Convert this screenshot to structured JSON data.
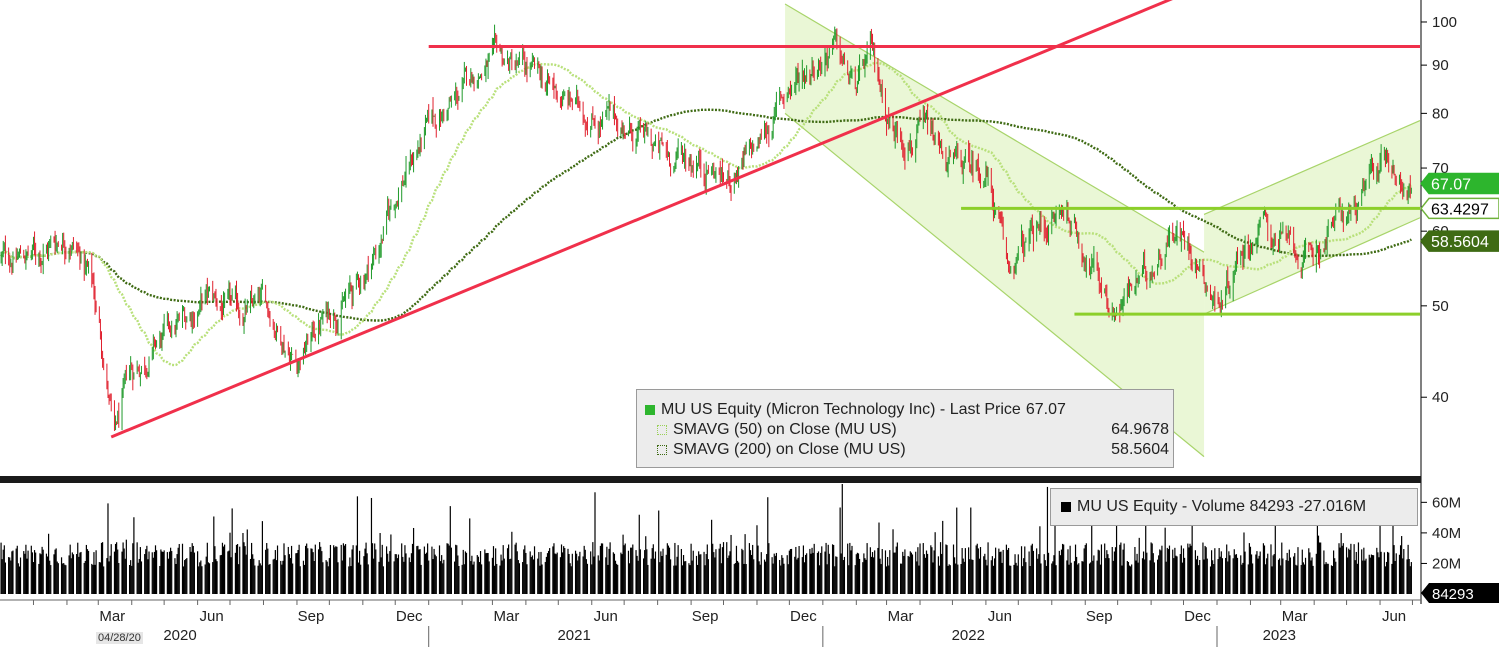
{
  "chart_data": [
    {
      "type": "candlestick",
      "series": [
        {
          "name": "MU US Equity (Micron Technology Inc) - Last Price",
          "last": 67.07,
          "color": "#2db52d"
        },
        {
          "name": "SMAVG (50)  on Close (MU US)",
          "last": 64.9678,
          "color": "#b8e07a"
        },
        {
          "name": "SMAVG (200)  on Close (MU US)",
          "last": 58.5604,
          "color": "#3f6b14"
        }
      ],
      "price_path": [
        [
          "2019-12-02",
          56
        ],
        [
          "2020-01-06",
          57
        ],
        [
          "2020-02-03",
          60
        ],
        [
          "2020-02-24",
          53
        ],
        [
          "2020-03-16",
          36
        ],
        [
          "2020-03-30",
          42
        ],
        [
          "2020-04-20",
          45
        ],
        [
          "2020-05-11",
          47
        ],
        [
          "2020-06-08",
          51
        ],
        [
          "2020-07-06",
          49
        ],
        [
          "2020-08-03",
          50
        ],
        [
          "2020-09-01",
          44
        ],
        [
          "2020-09-28",
          49
        ],
        [
          "2020-10-26",
          52
        ],
        [
          "2020-11-16",
          58
        ],
        [
          "2020-12-07",
          68
        ],
        [
          "2021-01-04",
          78
        ],
        [
          "2021-01-25",
          82
        ],
        [
          "2021-02-15",
          89
        ],
        [
          "2021-03-08",
          91
        ],
        [
          "2021-04-05",
          88
        ],
        [
          "2021-05-03",
          83
        ],
        [
          "2021-06-01",
          80
        ],
        [
          "2021-07-05",
          77
        ],
        [
          "2021-08-09",
          72
        ],
        [
          "2021-09-07",
          72
        ],
        [
          "2021-10-04",
          68
        ],
        [
          "2021-11-01",
          73
        ],
        [
          "2021-11-29",
          85
        ],
        [
          "2021-12-20",
          90
        ],
        [
          "2022-01-10",
          95
        ],
        [
          "2022-01-31",
          84
        ],
        [
          "2022-02-14",
          92
        ],
        [
          "2022-03-07",
          77
        ],
        [
          "2022-04-04",
          76
        ],
        [
          "2022-05-02",
          70
        ],
        [
          "2022-06-01",
          70
        ],
        [
          "2022-06-21",
          54
        ],
        [
          "2022-07-18",
          60
        ],
        [
          "2022-08-15",
          63
        ],
        [
          "2022-09-05",
          56
        ],
        [
          "2022-09-26",
          50
        ],
        [
          "2022-10-24",
          53
        ],
        [
          "2022-11-21",
          61
        ],
        [
          "2022-12-12",
          57
        ],
        [
          "2023-01-03",
          50
        ],
        [
          "2023-01-23",
          58
        ],
        [
          "2023-02-13",
          61
        ],
        [
          "2023-03-06",
          58
        ],
        [
          "2023-03-27",
          55
        ],
        [
          "2023-04-17",
          61
        ],
        [
          "2023-05-15",
          64
        ],
        [
          "2023-06-05",
          73
        ],
        [
          "2023-06-19",
          69
        ],
        [
          "2023-06-30",
          67.07
        ]
      ],
      "yscale": "log",
      "ylim": [
        33,
        105
      ],
      "yticks": [
        40,
        50,
        60,
        70,
        80,
        90,
        100
      ],
      "xlim": [
        "2019-12-01",
        "2023-07-08"
      ],
      "x_month_labels": [
        "Mar",
        "Jun",
        "Sep",
        "Dec",
        "Mar",
        "Jun",
        "Sep",
        "Dec",
        "Mar",
        "Jun",
        "Sep",
        "Dec",
        "Mar",
        "Jun"
      ],
      "x_year_labels": [
        "2020",
        "2021",
        "2022",
        "2023"
      ],
      "price_tags": [
        {
          "value": "67.07",
          "color": "#2db52d"
        },
        {
          "value": "63.4297",
          "color": "#ffffff",
          "border": "#6fb23a"
        },
        {
          "value": "58.5604",
          "color": "#3f6b14"
        }
      ],
      "horizontal_lines": [
        {
          "value": 94.2,
          "from": "2021-01-01",
          "to": "2023-07-08",
          "color": "#f0304b"
        },
        {
          "value": 63.43,
          "from": "2022-05-09",
          "to": "2023-07-08",
          "color": "#8ccf2a"
        },
        {
          "value": 49.0,
          "from": "2022-08-22",
          "to": "2023-07-08",
          "color": "#8ccf2a"
        }
      ],
      "trendline": {
        "from": [
          "2020-03-13",
          36.3
        ],
        "to": [
          "2022-06-06",
          88.2
        ],
        "color": "#f0304b"
      },
      "down_channel": {
        "from": "2021-11-27",
        "to": "2022-12-20",
        "upper": [
          104.5,
          57
        ],
        "lower": [
          80,
          34.6
        ]
      },
      "up_channel": {
        "from": "2022-12-20",
        "to": "2023-07-08",
        "upper": [
          62.5,
          78.6
        ],
        "lower": [
          49,
          62
        ]
      }
    },
    {
      "type": "bar",
      "series": [
        {
          "name": "MU US Equity - Volume",
          "last": "84293",
          "change": "-27.016M"
        }
      ],
      "ylim": [
        0,
        72000000
      ],
      "yticks": [
        "20M",
        "40M",
        "60M"
      ],
      "last_tag": "84293"
    }
  ],
  "legend_price": {
    "label": "MU US Equity (Micron Technology Inc) - Last Price",
    "value": "67.07",
    "sma50_label": "SMAVG (50)  on Close (MU US)",
    "sma50_value": "64.9678",
    "sma200_label": "SMAVG (200)  on Close (MU US)",
    "sma200_value": "58.5604"
  },
  "legend_volume": {
    "label": "MU US Equity - Volume 84293  -27.016M"
  },
  "date_stamp": "04/28/20"
}
